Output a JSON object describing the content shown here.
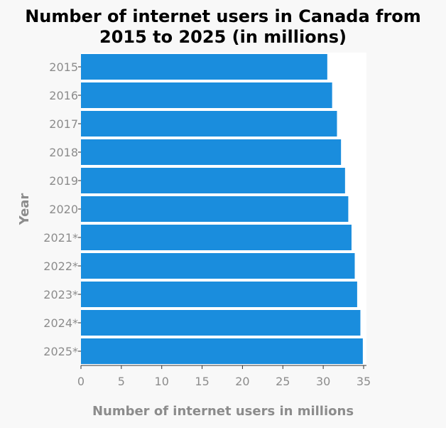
{
  "chart_data": {
    "type": "bar",
    "orientation": "horizontal",
    "title": "Number of internet users in Canada from 2015 to 2025 (in millions)",
    "title_lines": [
      "Number of internet users in Canada from",
      "2015 to 2025 (in millions)"
    ],
    "xlabel": "Number of internet users in millions",
    "ylabel": "Year",
    "categories": [
      "2015",
      "2016",
      "2017",
      "2018",
      "2019",
      "2020",
      "2021*",
      "2022*",
      "2023*",
      "2024*",
      "2025*"
    ],
    "values": [
      30.5,
      31.1,
      31.7,
      32.2,
      32.7,
      33.1,
      33.5,
      33.9,
      34.2,
      34.6,
      34.9
    ],
    "xlim": [
      0,
      35
    ],
    "xticks": [
      0,
      5,
      10,
      15,
      20,
      25,
      30,
      35
    ],
    "grid": false,
    "legend": "none",
    "colors": {
      "bar": "#1a8ddd",
      "background": "#f8f8f8",
      "plot_background": "#ffffff",
      "tick_text": "#8c8c8c",
      "axis_label": "#8c8c8c",
      "title": "#000000"
    }
  }
}
